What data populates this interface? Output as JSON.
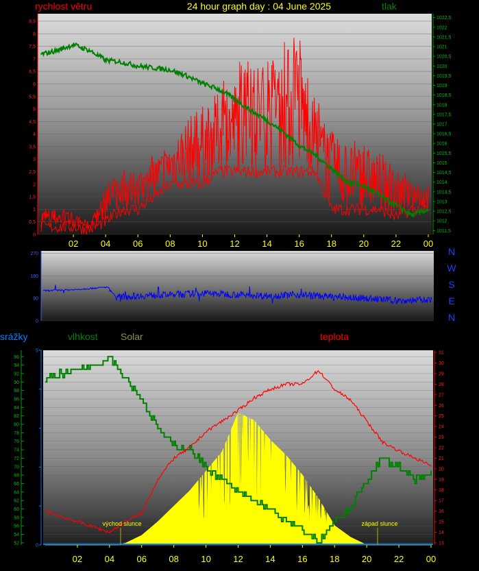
{
  "header": {
    "wind_label": "rychlost větru",
    "title": "24 hour graph day : 04 June 2025",
    "pressure_label": "tlak"
  },
  "compass": [
    "N",
    "W",
    "S",
    "E",
    "N"
  ],
  "bottom_labels": {
    "rain": "srážky",
    "humidity": "vlhkost",
    "solar": "Solar",
    "temperature": "teplota"
  },
  "markers": {
    "sunrise": "východ slunce",
    "sunset": "západ slunce"
  },
  "colors": {
    "wind": "#ff0000",
    "pressure": "#008000",
    "direction": "#0000ff",
    "rain": "#0080ff",
    "humidity": "#008000",
    "solar": "#ffff00",
    "temperature": "#ff0000",
    "x_tick": "#ffff00"
  },
  "chart_data": [
    {
      "type": "line",
      "name": "wind_pressure",
      "x_ticks": [
        "02",
        "04",
        "06",
        "08",
        "10",
        "12",
        "14",
        "16",
        "18",
        "20",
        "22",
        "00"
      ],
      "left_axis": {
        "ticks": [
          "0",
          "0,5",
          "1",
          "1,5",
          "2",
          "2,5",
          "3",
          "3,5",
          "4",
          "4,5",
          "5",
          "5,5",
          "6",
          "6,5",
          "7",
          "7,5",
          "8",
          "8,5"
        ],
        "ylim": [
          0,
          8.8
        ]
      },
      "right_axis": {
        "ticks": [
          "1011,5",
          "1012",
          "1012,5",
          "1013",
          "1013,5",
          "1014",
          "1014,5",
          "1015",
          "1015,5",
          "1016",
          "1016,5",
          "1017",
          "1017,5",
          "1018",
          "1018,5",
          "1019",
          "1019,5",
          "1020",
          "1020,5",
          "1021",
          "1021,5",
          "1022",
          "1022,5"
        ],
        "ylim": [
          1011.3,
          1022.7
        ]
      },
      "series": [
        {
          "key": "wind_gust",
          "hours": [
            0,
            1,
            2,
            3,
            3.5,
            4,
            5,
            6,
            7,
            8,
            9,
            10,
            11,
            12,
            13,
            14,
            15,
            16,
            16.5,
            17,
            18,
            19,
            20,
            21,
            22,
            23,
            24
          ],
          "values": [
            1,
            1,
            0.8,
            0.5,
            1,
            2,
            2.5,
            2.3,
            3,
            3.5,
            4.5,
            5,
            5.5,
            6,
            7,
            6.5,
            7,
            8,
            6,
            5,
            4,
            3.5,
            3.5,
            3,
            2.5,
            2,
            2
          ]
        },
        {
          "key": "wind_avg",
          "hours": [
            0,
            1,
            2,
            3,
            4,
            5,
            6,
            7,
            8,
            9,
            10,
            11,
            12,
            13,
            14,
            15,
            16,
            17,
            18,
            19,
            20,
            21,
            22,
            23,
            24
          ],
          "values": [
            0.3,
            0.3,
            0.3,
            0.2,
            0.5,
            1,
            1,
            1.5,
            2,
            2,
            2,
            2.5,
            2.5,
            2.5,
            2.5,
            2.5,
            2.5,
            2.5,
            1,
            1,
            1,
            1,
            0.7,
            1,
            1
          ]
        },
        {
          "key": "pressure",
          "hours": [
            0,
            1,
            2,
            3,
            4,
            5,
            6,
            7,
            8,
            9,
            10,
            11,
            12,
            13,
            14,
            15,
            16,
            17,
            18,
            19,
            20,
            21,
            22,
            23,
            24
          ],
          "values": [
            1020.6,
            1020.8,
            1021.1,
            1020.8,
            1020.3,
            1020.2,
            1020,
            1019.9,
            1019.8,
            1019.5,
            1019.1,
            1018.8,
            1018.3,
            1017.7,
            1017.2,
            1016.6,
            1015.9,
            1015.4,
            1014.7,
            1014,
            1013.8,
            1013.3,
            1012.8,
            1012.3,
            1012.6
          ]
        }
      ]
    },
    {
      "type": "line",
      "name": "wind_direction",
      "y_ticks": [
        "0",
        "90",
        "180",
        "270"
      ],
      "ylim": [
        0,
        280
      ],
      "series": [
        {
          "key": "direction",
          "hours": [
            0,
            2,
            4,
            4.5,
            6,
            8,
            10,
            12,
            14,
            16,
            18,
            20,
            22,
            24
          ],
          "values": [
            120,
            125,
            135,
            95,
            100,
            105,
            110,
            105,
            100,
            105,
            95,
            90,
            80,
            85
          ]
        }
      ]
    },
    {
      "type": "area",
      "name": "humidity_solar_temperature",
      "left_axis": {
        "ticks": [
          "52",
          "54",
          "56",
          "58",
          "60",
          "62",
          "64",
          "66",
          "68",
          "70",
          "72",
          "74",
          "76",
          "78",
          "80",
          "82",
          "84",
          "86",
          "88",
          "90",
          "92",
          "94",
          "96"
        ],
        "ylim": [
          51.5,
          97.5
        ]
      },
      "rain_axis": {
        "ticks": [
          "0",
          "5"
        ],
        "ylim": [
          0,
          5
        ]
      },
      "right_axis": {
        "ticks": [
          "13",
          "14",
          "15",
          "16",
          "17",
          "18",
          "19",
          "20",
          "21",
          "22",
          "23",
          "24",
          "25",
          "26",
          "27",
          "28",
          "29",
          "30",
          "31"
        ],
        "ylim": [
          12.8,
          31.2
        ]
      },
      "series": [
        {
          "key": "humidity",
          "hours": [
            0,
            1,
            2,
            3,
            4,
            5,
            6,
            7,
            8,
            9,
            10,
            11,
            12,
            13,
            14,
            15,
            16,
            17,
            18,
            19,
            20,
            21,
            22,
            23,
            24
          ],
          "values": [
            91,
            92,
            93,
            94,
            96,
            91,
            86,
            79,
            75,
            74,
            70,
            67,
            64,
            62,
            60,
            57,
            55,
            52,
            57,
            60,
            67,
            72,
            70,
            67,
            68
          ]
        },
        {
          "key": "solar",
          "hours": [
            0,
            4.5,
            5,
            6,
            7,
            8,
            9,
            10,
            11,
            12,
            13,
            14,
            15,
            16,
            17,
            18,
            19,
            20,
            24
          ],
          "values": [
            0,
            0,
            0.05,
            0.25,
            0.6,
            1,
            1.4,
            1.9,
            2.4,
            3.4,
            3.2,
            2.7,
            2.3,
            1.8,
            1.2,
            0.5,
            0.2,
            0,
            0
          ]
        },
        {
          "key": "temperature",
          "hours": [
            0,
            1,
            2,
            3,
            4,
            5,
            6,
            7,
            8,
            9,
            10,
            11,
            12,
            13,
            14,
            15,
            16,
            17,
            18,
            19,
            20,
            21,
            22,
            23,
            24
          ],
          "values": [
            16,
            15.5,
            15,
            14.5,
            14,
            15,
            15.8,
            19,
            21,
            22,
            23.5,
            24.5,
            25.5,
            26.7,
            27.5,
            28,
            28,
            29.3,
            27.5,
            26.5,
            24.5,
            22.5,
            21.7,
            21,
            20.3
          ]
        }
      ]
    }
  ]
}
